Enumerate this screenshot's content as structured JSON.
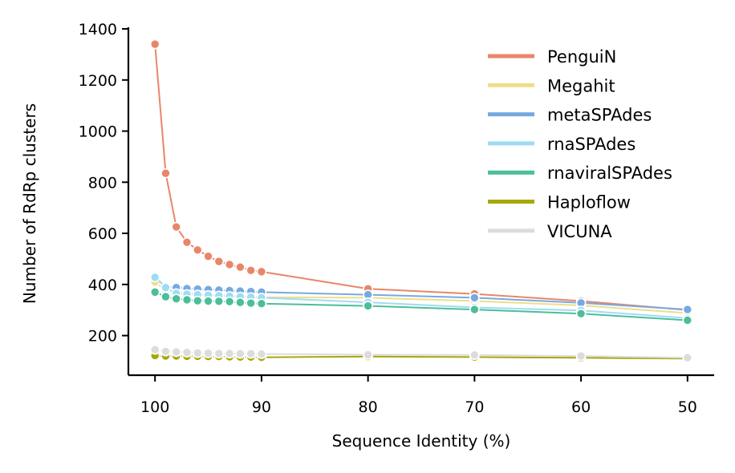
{
  "chart_data": {
    "type": "line",
    "title": "",
    "xlabel": "Sequence Identity (%)",
    "ylabel": "Number of RdRp clusters",
    "xlim": [
      102.5,
      47.5
    ],
    "ylim": [
      45,
      1400
    ],
    "x_reversed": true,
    "xticks": [
      100,
      90,
      80,
      70,
      60,
      50
    ],
    "yticks": [
      200,
      400,
      600,
      800,
      1000,
      1200,
      1400
    ],
    "grid": false,
    "legend_position": "top-right",
    "x": [
      100,
      99,
      98,
      97,
      96,
      95,
      94,
      93,
      92,
      91,
      90,
      80,
      70,
      60,
      50
    ],
    "series": [
      {
        "name": "PenguiN",
        "color": "#e8866a",
        "values": [
          1340,
          835,
          625,
          565,
          535,
          510,
          490,
          478,
          468,
          455,
          450,
          383,
          363,
          335,
          300
        ]
      },
      {
        "name": "Megahit",
        "color": "#efdd8a",
        "values": [
          410,
          378,
          372,
          368,
          364,
          361,
          358,
          356,
          354,
          352,
          350,
          348,
          335,
          318,
          288
        ]
      },
      {
        "name": "metaSPAdes",
        "color": "#77a9e0",
        "values": [
          428,
          390,
          388,
          384,
          382,
          380,
          378,
          376,
          374,
          372,
          370,
          360,
          348,
          328,
          302
        ]
      },
      {
        "name": "rnaSPAdes",
        "color": "#9fdcf4",
        "values": [
          428,
          388,
          365,
          362,
          360,
          358,
          356,
          354,
          352,
          350,
          348,
          330,
          310,
          298,
          268
        ]
      },
      {
        "name": "rnaviralSPAdes",
        "color": "#4cbe98",
        "values": [
          370,
          352,
          344,
          340,
          336,
          335,
          334,
          333,
          330,
          327,
          325,
          316,
          302,
          286,
          260
        ]
      },
      {
        "name": "Haploflow",
        "color": "#a8a80a",
        "values": [
          122,
          120,
          120,
          119,
          119,
          118,
          118,
          117,
          116,
          116,
          115,
          118,
          116,
          113,
          110
        ]
      },
      {
        "name": "VICUNA",
        "color": "#dcdcdc",
        "values": [
          145,
          138,
          136,
          134,
          132,
          131,
          130,
          130,
          129,
          129,
          128,
          125,
          124,
          120,
          113
        ]
      }
    ]
  }
}
